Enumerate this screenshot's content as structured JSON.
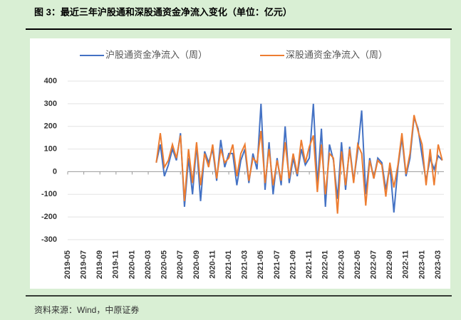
{
  "header": {
    "title": "图 3：最近三年沪股通和深股通资金净流入变化（单位：亿元）"
  },
  "footer": {
    "source": "资料来源：Wind，中原证券"
  },
  "chart_data": {
    "type": "line",
    "categories": [
      "2019-05",
      null,
      null,
      null,
      "2019-07",
      null,
      null,
      null,
      "2019-09",
      null,
      null,
      null,
      "2019-11",
      null,
      null,
      null,
      "2020-01",
      null,
      null,
      null,
      "2020-03",
      null,
      null,
      null,
      "2020-05",
      null,
      null,
      null,
      "2020-07",
      null,
      null,
      null,
      "2020-09",
      null,
      null,
      null,
      "2020-11",
      null,
      null,
      null,
      "2021-01",
      null,
      null,
      null,
      "2021-03",
      null,
      null,
      null,
      "2021-05",
      null,
      null,
      null,
      "2021-07",
      null,
      null,
      null,
      "2021-09",
      null,
      null,
      null,
      "2021-11",
      null,
      null,
      null,
      "2022-01",
      null,
      null,
      null,
      "2022-03",
      null,
      null,
      null,
      "2022-05",
      null,
      null,
      null,
      "2022-07",
      null,
      null,
      null,
      "2022-09",
      null,
      null,
      null,
      "2022-11",
      null,
      null,
      null,
      "2023-01",
      null,
      null,
      null,
      "2023-03",
      null
    ],
    "series": [
      {
        "name": "沪股通资金净流入（周）",
        "color": "#4472c4",
        "values": [
          null,
          null,
          null,
          null,
          null,
          null,
          null,
          null,
          null,
          null,
          null,
          null,
          null,
          null,
          null,
          null,
          null,
          null,
          null,
          null,
          null,
          null,
          40,
          120,
          -20,
          30,
          100,
          50,
          170,
          -155,
          60,
          -100,
          120,
          -130,
          90,
          40,
          100,
          -40,
          140,
          20,
          80,
          80,
          -60,
          50,
          100,
          -50,
          80,
          10,
          300,
          -80,
          130,
          -100,
          60,
          -60,
          200,
          -50,
          60,
          -20,
          100,
          30,
          60,
          300,
          -60,
          190,
          -155,
          120,
          50,
          -120,
          130,
          -80,
          110,
          -40,
          90,
          270,
          -100,
          60,
          -30,
          60,
          40,
          -80,
          30,
          -180,
          20,
          150,
          -20,
          60,
          240,
          190,
          70,
          -40,
          60,
          10,
          70,
          50
        ]
      },
      {
        "name": "深股通资金净流入（周）",
        "color": "#ed7d31",
        "values": [
          null,
          null,
          null,
          null,
          null,
          null,
          null,
          null,
          null,
          null,
          null,
          null,
          null,
          null,
          null,
          null,
          null,
          null,
          null,
          null,
          null,
          null,
          40,
          170,
          20,
          50,
          120,
          60,
          160,
          -130,
          100,
          -50,
          130,
          -60,
          80,
          20,
          120,
          -30,
          100,
          40,
          60,
          120,
          -20,
          80,
          120,
          -40,
          60,
          40,
          180,
          -50,
          100,
          -60,
          50,
          -40,
          130,
          -30,
          80,
          -10,
          140,
          40,
          110,
          160,
          -90,
          120,
          -100,
          80,
          60,
          -185,
          90,
          -60,
          100,
          -50,
          120,
          80,
          -150,
          50,
          -30,
          50,
          30,
          -110,
          40,
          -70,
          30,
          170,
          -10,
          80,
          250,
          180,
          120,
          -60,
          100,
          -60,
          120,
          50
        ]
      }
    ],
    "ylim": [
      -300,
      400
    ],
    "yticks": [
      -300,
      -200,
      -100,
      0,
      100,
      200,
      300,
      400
    ],
    "grid": true,
    "legend": "top"
  }
}
